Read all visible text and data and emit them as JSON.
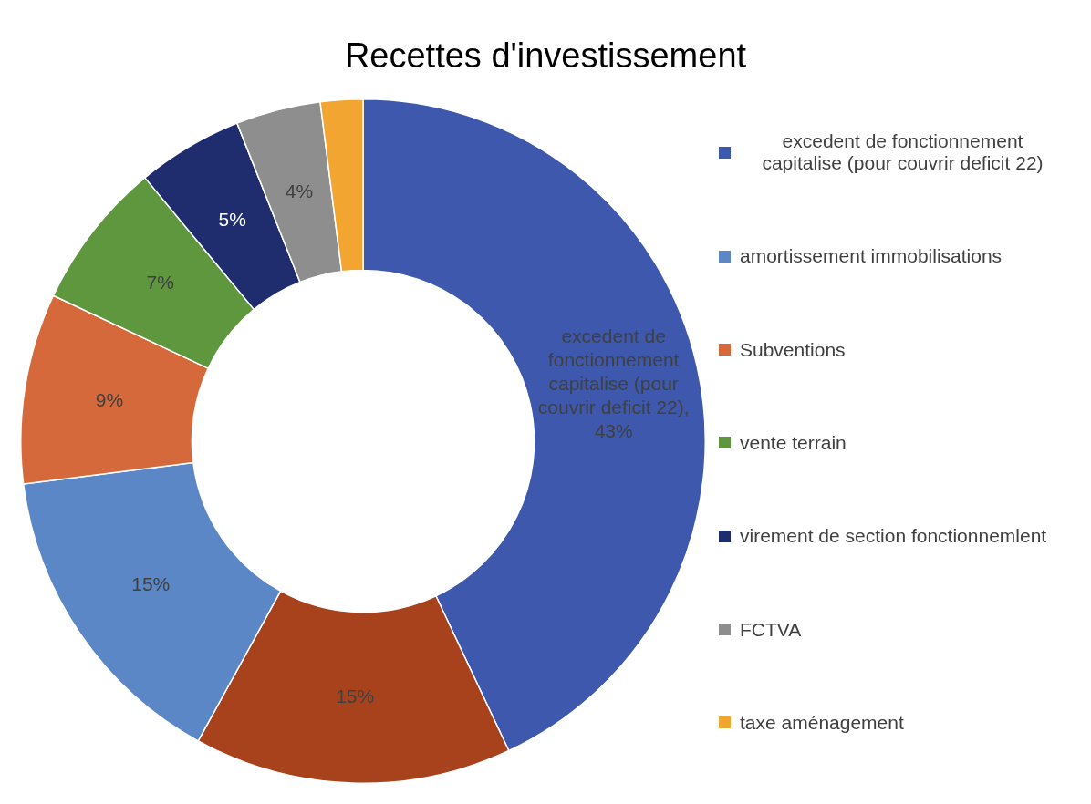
{
  "chart_data": {
    "type": "donut",
    "title": "Recettes d'investissement",
    "categories": [
      "excedent de fonctionnement capitalise (pour couvrir deficit 22)",
      null,
      "amortissement immobilisations",
      "Subventions",
      "vente terrain",
      "virement de section fonctionnemlent",
      "FCTVA",
      "taxe aménagement"
    ],
    "values": [
      43,
      15,
      15,
      9,
      7,
      5,
      4,
      2
    ],
    "colors": [
      "#3d58ac",
      "#a8421d",
      "#5b87c7",
      "#d6693b",
      "#5f973f",
      "#1f2d6e",
      "#8e8e8e",
      "#f2a631"
    ],
    "value_labels": [
      "excedent de fonctionnement capitalise (pour couvrir deficit 22), 43%",
      "15%",
      "15%",
      "9%",
      "7%",
      "5%",
      "4%",
      null
    ],
    "legend": "right"
  }
}
